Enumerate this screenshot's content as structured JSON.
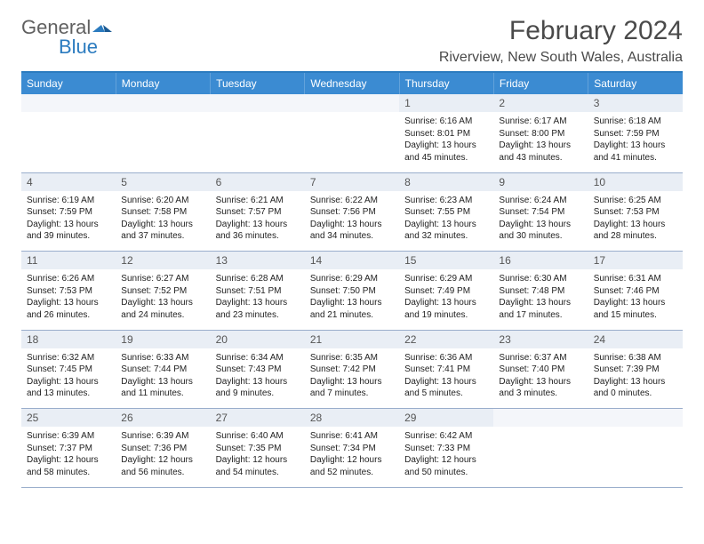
{
  "logo": {
    "left": "General",
    "right": "Blue"
  },
  "title": "February 2024",
  "location": "Riverview, New South Wales, Australia",
  "colors": {
    "accent": "#3b8bd2",
    "rule": "#2b7bbf",
    "shade": "#e9eef5",
    "rowline": "#9aaecc",
    "text": "#222222",
    "header_text": "#ffffff",
    "title_text": "#4a4a4a"
  },
  "dow": [
    "Sunday",
    "Monday",
    "Tuesday",
    "Wednesday",
    "Thursday",
    "Friday",
    "Saturday"
  ],
  "weeks": [
    [
      {
        "n": "",
        "sr": "",
        "ss": "",
        "dl": ""
      },
      {
        "n": "",
        "sr": "",
        "ss": "",
        "dl": ""
      },
      {
        "n": "",
        "sr": "",
        "ss": "",
        "dl": ""
      },
      {
        "n": "",
        "sr": "",
        "ss": "",
        "dl": ""
      },
      {
        "n": "1",
        "sr": "Sunrise: 6:16 AM",
        "ss": "Sunset: 8:01 PM",
        "dl": "Daylight: 13 hours and 45 minutes."
      },
      {
        "n": "2",
        "sr": "Sunrise: 6:17 AM",
        "ss": "Sunset: 8:00 PM",
        "dl": "Daylight: 13 hours and 43 minutes."
      },
      {
        "n": "3",
        "sr": "Sunrise: 6:18 AM",
        "ss": "Sunset: 7:59 PM",
        "dl": "Daylight: 13 hours and 41 minutes."
      }
    ],
    [
      {
        "n": "4",
        "sr": "Sunrise: 6:19 AM",
        "ss": "Sunset: 7:59 PM",
        "dl": "Daylight: 13 hours and 39 minutes."
      },
      {
        "n": "5",
        "sr": "Sunrise: 6:20 AM",
        "ss": "Sunset: 7:58 PM",
        "dl": "Daylight: 13 hours and 37 minutes."
      },
      {
        "n": "6",
        "sr": "Sunrise: 6:21 AM",
        "ss": "Sunset: 7:57 PM",
        "dl": "Daylight: 13 hours and 36 minutes."
      },
      {
        "n": "7",
        "sr": "Sunrise: 6:22 AM",
        "ss": "Sunset: 7:56 PM",
        "dl": "Daylight: 13 hours and 34 minutes."
      },
      {
        "n": "8",
        "sr": "Sunrise: 6:23 AM",
        "ss": "Sunset: 7:55 PM",
        "dl": "Daylight: 13 hours and 32 minutes."
      },
      {
        "n": "9",
        "sr": "Sunrise: 6:24 AM",
        "ss": "Sunset: 7:54 PM",
        "dl": "Daylight: 13 hours and 30 minutes."
      },
      {
        "n": "10",
        "sr": "Sunrise: 6:25 AM",
        "ss": "Sunset: 7:53 PM",
        "dl": "Daylight: 13 hours and 28 minutes."
      }
    ],
    [
      {
        "n": "11",
        "sr": "Sunrise: 6:26 AM",
        "ss": "Sunset: 7:53 PM",
        "dl": "Daylight: 13 hours and 26 minutes."
      },
      {
        "n": "12",
        "sr": "Sunrise: 6:27 AM",
        "ss": "Sunset: 7:52 PM",
        "dl": "Daylight: 13 hours and 24 minutes."
      },
      {
        "n": "13",
        "sr": "Sunrise: 6:28 AM",
        "ss": "Sunset: 7:51 PM",
        "dl": "Daylight: 13 hours and 23 minutes."
      },
      {
        "n": "14",
        "sr": "Sunrise: 6:29 AM",
        "ss": "Sunset: 7:50 PM",
        "dl": "Daylight: 13 hours and 21 minutes."
      },
      {
        "n": "15",
        "sr": "Sunrise: 6:29 AM",
        "ss": "Sunset: 7:49 PM",
        "dl": "Daylight: 13 hours and 19 minutes."
      },
      {
        "n": "16",
        "sr": "Sunrise: 6:30 AM",
        "ss": "Sunset: 7:48 PM",
        "dl": "Daylight: 13 hours and 17 minutes."
      },
      {
        "n": "17",
        "sr": "Sunrise: 6:31 AM",
        "ss": "Sunset: 7:46 PM",
        "dl": "Daylight: 13 hours and 15 minutes."
      }
    ],
    [
      {
        "n": "18",
        "sr": "Sunrise: 6:32 AM",
        "ss": "Sunset: 7:45 PM",
        "dl": "Daylight: 13 hours and 13 minutes."
      },
      {
        "n": "19",
        "sr": "Sunrise: 6:33 AM",
        "ss": "Sunset: 7:44 PM",
        "dl": "Daylight: 13 hours and 11 minutes."
      },
      {
        "n": "20",
        "sr": "Sunrise: 6:34 AM",
        "ss": "Sunset: 7:43 PM",
        "dl": "Daylight: 13 hours and 9 minutes."
      },
      {
        "n": "21",
        "sr": "Sunrise: 6:35 AM",
        "ss": "Sunset: 7:42 PM",
        "dl": "Daylight: 13 hours and 7 minutes."
      },
      {
        "n": "22",
        "sr": "Sunrise: 6:36 AM",
        "ss": "Sunset: 7:41 PM",
        "dl": "Daylight: 13 hours and 5 minutes."
      },
      {
        "n": "23",
        "sr": "Sunrise: 6:37 AM",
        "ss": "Sunset: 7:40 PM",
        "dl": "Daylight: 13 hours and 3 minutes."
      },
      {
        "n": "24",
        "sr": "Sunrise: 6:38 AM",
        "ss": "Sunset: 7:39 PM",
        "dl": "Daylight: 13 hours and 0 minutes."
      }
    ],
    [
      {
        "n": "25",
        "sr": "Sunrise: 6:39 AM",
        "ss": "Sunset: 7:37 PM",
        "dl": "Daylight: 12 hours and 58 minutes."
      },
      {
        "n": "26",
        "sr": "Sunrise: 6:39 AM",
        "ss": "Sunset: 7:36 PM",
        "dl": "Daylight: 12 hours and 56 minutes."
      },
      {
        "n": "27",
        "sr": "Sunrise: 6:40 AM",
        "ss": "Sunset: 7:35 PM",
        "dl": "Daylight: 12 hours and 54 minutes."
      },
      {
        "n": "28",
        "sr": "Sunrise: 6:41 AM",
        "ss": "Sunset: 7:34 PM",
        "dl": "Daylight: 12 hours and 52 minutes."
      },
      {
        "n": "29",
        "sr": "Sunrise: 6:42 AM",
        "ss": "Sunset: 7:33 PM",
        "dl": "Daylight: 12 hours and 50 minutes."
      },
      {
        "n": "",
        "sr": "",
        "ss": "",
        "dl": ""
      },
      {
        "n": "",
        "sr": "",
        "ss": "",
        "dl": ""
      }
    ]
  ]
}
